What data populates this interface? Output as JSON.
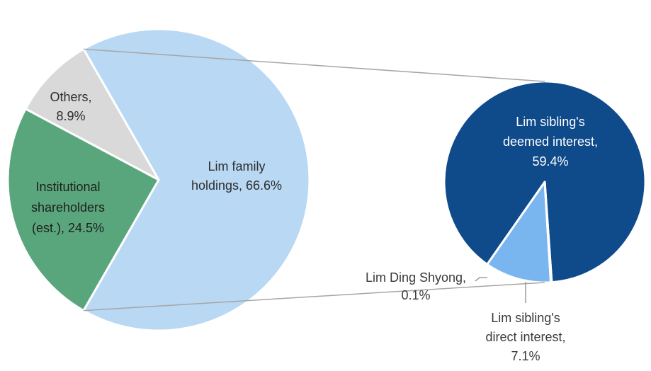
{
  "chart_data": {
    "type": "pie",
    "subtype": "pie-of-pie",
    "main_pie": {
      "slices": [
        {
          "name": "Lim family holdings",
          "value": 66.6,
          "color": "#b8d8f4",
          "label_lines": [
            "Lim family",
            "holdings, 66.6%"
          ],
          "label_color": "#2d2d2d"
        },
        {
          "name": "Institutional shareholders (est.)",
          "value": 24.5,
          "color": "#5aa67c",
          "label_lines": [
            "Institutional",
            "shareholders",
            "(est.), 24.5%"
          ],
          "label_color": "#1f1f1f"
        },
        {
          "name": "Others",
          "value": 8.9,
          "color": "#d9d9d9",
          "label_lines": [
            "Others,",
            "8.9%"
          ],
          "label_color": "#2d2d2d"
        }
      ]
    },
    "secondary_pie": {
      "breakdown_of": "Lim family holdings",
      "slices": [
        {
          "name": "Lim sibling's deemed interest",
          "value": 59.4,
          "color": "#0f4a8a",
          "label_lines": [
            "Lim sibling's",
            "deemed interest,",
            "59.4%"
          ],
          "label_color": "#ffffff"
        },
        {
          "name": "Lim sibling's direct interest",
          "value": 7.1,
          "color": "#79b6f0",
          "label_lines": [
            "Lim sibling's",
            "direct interest,",
            "7.1%"
          ],
          "label_color": "#3a3a3a"
        },
        {
          "name": "Lim Ding Shyong",
          "value": 0.1,
          "color": "#9ec9f3",
          "label_lines": [
            "Lim Ding Shyong,",
            "0.1%"
          ],
          "label_color": "#3a3a3a"
        }
      ]
    },
    "connector_color": "#a6a6a6"
  }
}
